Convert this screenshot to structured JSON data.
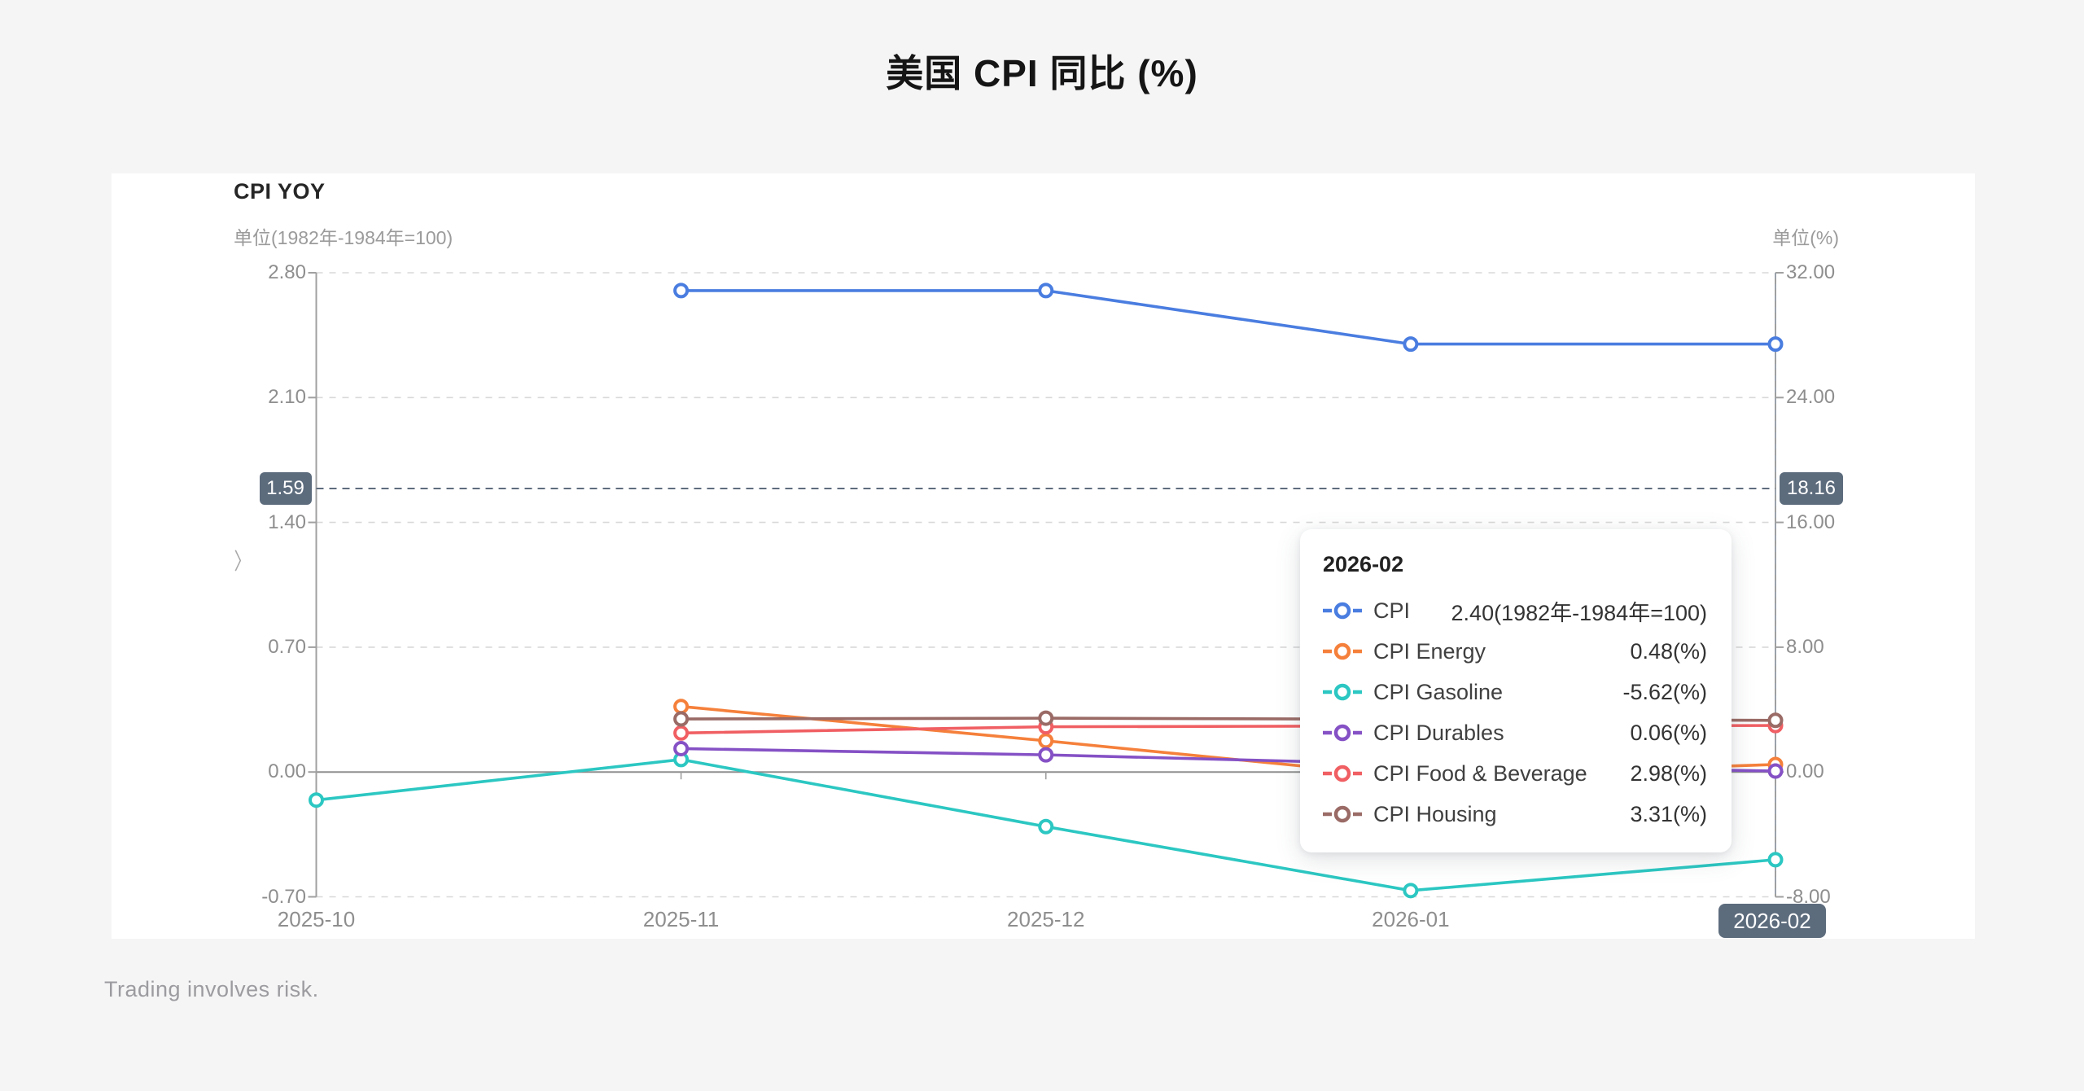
{
  "page": {
    "title": "美国 CPI 同比 (%)",
    "footer": "Trading involves risk."
  },
  "chart": {
    "title": "CPI YOY",
    "left_unit": "单位(1982年-1984年=100)",
    "right_unit": "单位(%)",
    "left_ticks": [
      "2.80",
      "2.10",
      "1.40",
      "0.70",
      "0.00",
      "-0.70"
    ],
    "right_ticks": [
      "32.00",
      "24.00",
      "16.00",
      "8.00",
      "0.00",
      "-8.00"
    ],
    "x_ticks": [
      "2025-10",
      "2025-11",
      "2025-12",
      "2026-01"
    ],
    "pointer": {
      "left_badge": "1.59",
      "right_badge": "18.16",
      "x_badge": "2026-02"
    },
    "chevron": "〉"
  },
  "tooltip": {
    "title": "2026-02",
    "rows": [
      {
        "label": "CPI",
        "value": "2.40(1982年-1984年=100)"
      },
      {
        "label": "CPI Energy",
        "value": "0.48(%)"
      },
      {
        "label": "CPI Gasoline",
        "value": "-5.62(%)"
      },
      {
        "label": "CPI Durables",
        "value": "0.06(%)"
      },
      {
        "label": "CPI Food & Beverage",
        "value": "2.98(%)"
      },
      {
        "label": "CPI Housing",
        "value": "3.31(%)"
      }
    ]
  },
  "chart_data": {
    "type": "line",
    "title": "CPI YOY",
    "x": [
      "2025-10",
      "2025-11",
      "2025-12",
      "2026-01",
      "2026-02"
    ],
    "left_axis": {
      "label": "单位(1982年-1984年=100)",
      "range": [
        -0.7,
        2.8
      ],
      "tick_step": 0.7
    },
    "right_axis": {
      "label": "单位(%)",
      "range": [
        -8.0,
        32.0
      ],
      "tick_step": 8.0
    },
    "grid": "dashed horizontal lines, solid zero line",
    "legend_position": "none (tooltip only)",
    "series": [
      {
        "name": "CPI",
        "axis": "left",
        "color": "#4a7de0",
        "values": [
          null,
          2.7,
          2.7,
          2.4,
          2.4
        ]
      },
      {
        "name": "CPI Energy",
        "axis": "right",
        "color": "#f5803b",
        "values": [
          null,
          4.2,
          2.0,
          -0.3,
          0.48
        ]
      },
      {
        "name": "CPI Gasoline",
        "axis": "right",
        "color": "#2cc7c2",
        "values": [
          -1.8,
          0.8,
          -3.5,
          -7.6,
          -5.62
        ]
      },
      {
        "name": "CPI Durables",
        "axis": "right",
        "color": "#8551c5",
        "values": [
          null,
          1.5,
          1.1,
          0.5,
          0.06
        ]
      },
      {
        "name": "CPI Food & Beverage",
        "axis": "right",
        "color": "#f05f63",
        "values": [
          null,
          2.5,
          2.9,
          2.95,
          2.98
        ]
      },
      {
        "name": "CPI Housing",
        "axis": "right",
        "color": "#9a6b66",
        "values": [
          null,
          3.4,
          3.45,
          3.38,
          3.31
        ]
      }
    ],
    "axis_pointer": {
      "hover_x": "2026-02",
      "left_value": 1.59,
      "right_value": 18.16
    }
  }
}
